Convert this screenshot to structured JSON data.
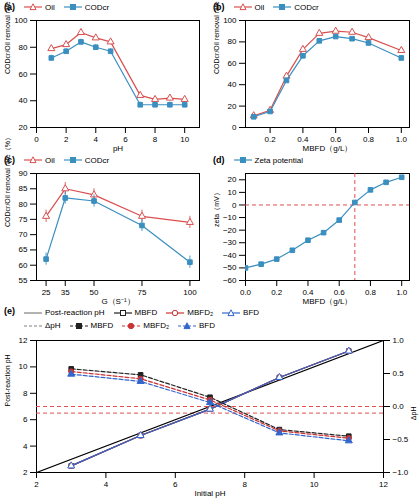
{
  "chart_data": [
    {
      "type": "line",
      "title": "(a)",
      "xlabel": "pH",
      "ylabel": "CODcr/Oil removal rate（%）",
      "xlim": [
        0,
        11
      ],
      "xticks": [
        0,
        2,
        4,
        6,
        8,
        10
      ],
      "ylim": [
        20,
        100
      ],
      "yticks": [
        20,
        40,
        60,
        80,
        100
      ],
      "legend": "top",
      "x": [
        1,
        2,
        3,
        4,
        5,
        7,
        8,
        9,
        10
      ],
      "series": [
        {
          "name": "Oil",
          "color": "#d94f4f",
          "marker": "open-triangle",
          "line_style": "solid",
          "values": [
            79,
            82,
            91,
            87,
            84,
            44,
            41,
            42,
            41
          ],
          "yerr": [
            2,
            2,
            2,
            2,
            2,
            2,
            2,
            2,
            2
          ]
        },
        {
          "name": "CODcr",
          "color": "#3a8fbf",
          "marker": "square",
          "line_style": "solid",
          "values": [
            72,
            77,
            84,
            80,
            77,
            37,
            37,
            37,
            37
          ],
          "yerr": [
            2,
            2,
            2,
            2,
            2,
            2,
            2,
            2,
            2
          ]
        }
      ]
    },
    {
      "type": "line",
      "title": "(b)",
      "xlabel": "MBFD（g/L）",
      "ylabel": "CODcr/Oil removal rate（%）",
      "xlim": [
        0.05,
        1.05
      ],
      "xticks": [
        0.2,
        0.4,
        0.6,
        0.8,
        {
          "value": 1,
          "label": "1.0"
        }
      ],
      "ylim": [
        0,
        100
      ],
      "yticks": [
        0,
        20,
        40,
        60,
        80,
        100
      ],
      "legend": "top",
      "x": [
        0.1,
        0.2,
        0.3,
        0.4,
        0.5,
        0.6,
        0.7,
        0.8,
        1.0
      ],
      "series": [
        {
          "name": "Oil",
          "color": "#d94f4f",
          "marker": "open-triangle",
          "line_style": "solid",
          "values": [
            11,
            16,
            48,
            73,
            88,
            90,
            89,
            84,
            72
          ],
          "yerr": [
            2,
            2,
            2,
            2,
            3,
            2,
            2,
            2,
            2
          ]
        },
        {
          "name": "CODcr",
          "color": "#3a8fbf",
          "marker": "square",
          "line_style": "solid",
          "values": [
            10,
            15,
            44,
            67,
            81,
            85,
            83,
            79,
            65
          ],
          "yerr": [
            2,
            2,
            2,
            2,
            2,
            2,
            2,
            2,
            2
          ]
        }
      ]
    },
    {
      "type": "line",
      "title": "(c)",
      "xlabel": "G（S⁻¹）",
      "ylabel": "CODcr/Oil removal rate（%）",
      "xlim": [
        20,
        105
      ],
      "xticks": [
        25,
        35,
        50,
        75,
        100
      ],
      "ylim": [
        55,
        90
      ],
      "yticks": [
        55,
        60,
        65,
        70,
        75,
        80,
        85,
        90
      ],
      "legend": "top",
      "x": [
        25,
        35,
        50,
        75,
        100
      ],
      "series": [
        {
          "name": "Oil",
          "color": "#d94f4f",
          "marker": "open-triangle",
          "line_style": "solid",
          "values": [
            76,
            85,
            83,
            76,
            74
          ],
          "yerr": [
            2,
            2,
            2,
            2,
            2
          ]
        },
        {
          "name": "CODcr",
          "color": "#3a8fbf",
          "marker": "square",
          "line_style": "solid",
          "values": [
            62,
            82,
            81,
            73,
            61
          ],
          "yerr": [
            2,
            2,
            2,
            2,
            2
          ]
        }
      ]
    },
    {
      "type": "line",
      "title": "(d)",
      "xlabel": "MBFD（g/L）",
      "ylabel": "zeta（mV）",
      "xlim": [
        0.0,
        1.05
      ],
      "xticks": [
        {
          "value": 0,
          "label": "0.0"
        },
        0.2,
        0.4,
        0.6,
        0.8,
        {
          "value": 1,
          "label": "1.0"
        }
      ],
      "ylim": [
        -60,
        25
      ],
      "yticks": [
        -60,
        -50,
        -40,
        -30,
        -20,
        -10,
        0,
        10,
        20
      ],
      "legend": "top",
      "x": [
        0.0,
        0.1,
        0.2,
        0.3,
        0.4,
        0.5,
        0.6,
        0.7,
        0.8,
        0.9,
        1.0
      ],
      "series": [
        {
          "name": "Zeta potential",
          "color": "#3a8fbf",
          "marker": "square",
          "line_style": "solid",
          "values": [
            -50,
            -47,
            -43,
            -36,
            -28,
            -22,
            -12,
            2,
            12,
            18,
            22
          ],
          "yerr": [
            1,
            1,
            1,
            1,
            1,
            1,
            1,
            1,
            1,
            1,
            1
          ]
        }
      ],
      "hlines": [
        {
          "y": 0,
          "color": "#e05050",
          "line_style": "dashed"
        }
      ],
      "vlines": [
        {
          "x": 0.7,
          "color": "#e05050",
          "line_style": "dashed"
        }
      ]
    },
    {
      "type": "line",
      "title": "(e)",
      "xlabel": "Initial pH",
      "ylabel": "Post-reaction pH",
      "y2label": "ΔpH",
      "xlim": [
        2,
        12
      ],
      "xticks": [
        2,
        4,
        6,
        8,
        10,
        12
      ],
      "ylim": [
        2,
        12
      ],
      "yticks": [
        2,
        4,
        6,
        8,
        10,
        12
      ],
      "y2lim": [
        -1.0,
        1.0
      ],
      "y2ticks": [
        {
          "value": -1,
          "label": "−1.0"
        },
        -0.5,
        {
          "value": 0,
          "label": "0.0"
        },
        0.5,
        {
          "value": 1,
          "label": "1.0"
        }
      ],
      "legend": "top",
      "x": [
        3,
        5,
        7,
        9,
        11
      ],
      "series": [
        {
          "name": "MBFD",
          "color": "#222222",
          "marker": "open-square",
          "line_style": "solid",
          "values": [
            2.5,
            4.8,
            6.8,
            9.2,
            11.2
          ]
        },
        {
          "name": "MBFD₂",
          "color": "#cc3333",
          "marker": "open-circle",
          "line_style": "solid",
          "values": [
            2.5,
            4.8,
            6.8,
            9.2,
            11.2
          ]
        },
        {
          "name": "BFD",
          "color": "#3366cc",
          "marker": "open-triangle",
          "line_style": "solid",
          "values": [
            2.5,
            4.8,
            6.8,
            9.2,
            11.2
          ]
        },
        {
          "name": "MBFD",
          "color": "#222222",
          "marker": "square",
          "line_style": "dashed",
          "axis": "y2",
          "values": [
            0.57,
            0.48,
            0.14,
            -0.35,
            -0.45
          ]
        },
        {
          "name": "MBFD₂",
          "color": "#cc3333",
          "marker": "circle",
          "line_style": "dashed",
          "axis": "y2",
          "values": [
            0.53,
            0.42,
            0.1,
            -0.37,
            -0.48
          ]
        },
        {
          "name": "BFD",
          "color": "#3366cc",
          "marker": "triangle",
          "line_style": "dashed",
          "axis": "y2",
          "values": [
            0.49,
            0.38,
            0.06,
            -0.4,
            -0.52
          ]
        }
      ],
      "ref_line": {
        "x": [
          2,
          12
        ],
        "values": [
          2,
          12
        ],
        "color": "black"
      },
      "hlines": [
        {
          "y": 6.5,
          "color": "#e05050",
          "line_style": "dashed"
        },
        {
          "y": 0.0,
          "axis": "y2",
          "color": "#e05050",
          "line_style": "dashed"
        }
      ]
    }
  ]
}
